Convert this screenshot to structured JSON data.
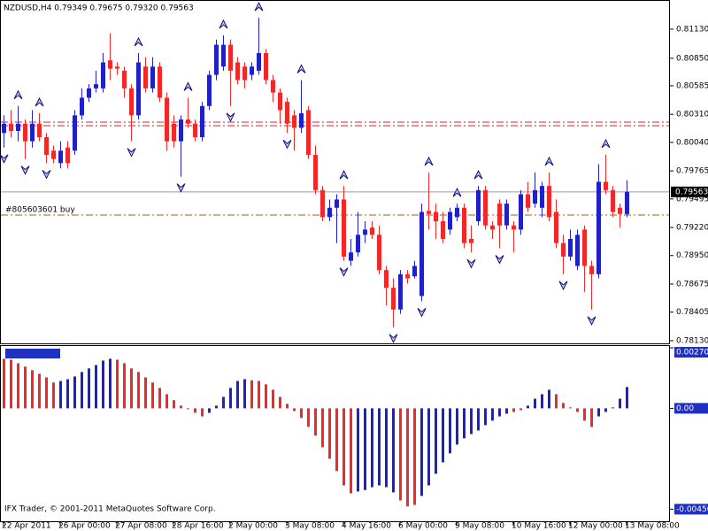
{
  "chart_data": [
    {
      "type": "candlestick",
      "title": "NZDUSD,H4  0.79349 0.79675 0.79320 0.79563",
      "up_color": "#2020c8",
      "down_color": "#f02828",
      "fractal_color": "#10107a",
      "categories": [
        "22 Apr 2011",
        null,
        null,
        null,
        null,
        null,
        null,
        null,
        "26 Apr 00:00",
        null,
        null,
        null,
        null,
        null,
        null,
        null,
        "27 Apr 08:00",
        null,
        null,
        null,
        null,
        null,
        null,
        null,
        "28 Apr 16:00",
        null,
        null,
        null,
        null,
        null,
        null,
        null,
        "2 May 00:00",
        null,
        null,
        null,
        null,
        null,
        null,
        null,
        "3 May 08:00",
        null,
        null,
        null,
        null,
        null,
        null,
        null,
        "4 May 16:00",
        null,
        null,
        null,
        null,
        null,
        null,
        null,
        "6 May 00:00",
        null,
        null,
        null,
        null,
        null,
        null,
        null,
        "9 May 08:00",
        null,
        null,
        null,
        null,
        null,
        null,
        null,
        "10 May 16:00",
        null,
        null,
        null,
        null,
        null,
        null,
        null,
        "12 May 00:00",
        null,
        null,
        null,
        null,
        null,
        null,
        null,
        "13 May 08:00"
      ],
      "candles": [
        [
          0.8013,
          0.803,
          0.7999,
          0.8022
        ],
        [
          0.8022,
          0.8035,
          0.8009,
          0.8015
        ],
        [
          0.8015,
          0.8039,
          0.8005,
          0.8022
        ],
        [
          0.8022,
          0.8026,
          0.7988,
          0.8005
        ],
        [
          0.8005,
          0.8035,
          0.7999,
          0.8022
        ],
        [
          0.8022,
          0.8032,
          0.8005,
          0.8009
        ],
        [
          0.8009,
          0.8013,
          0.7984,
          0.7992
        ],
        [
          0.7996,
          0.8001,
          0.7984,
          0.7988
        ],
        [
          0.7984,
          0.8005,
          0.7979,
          0.7996
        ],
        [
          0.7999,
          0.8005,
          0.7979,
          0.7984
        ],
        [
          0.7996,
          0.8035,
          0.7992,
          0.803
        ],
        [
          0.803,
          0.8056,
          0.8026,
          0.8047
        ],
        [
          0.8047,
          0.806,
          0.8043,
          0.8056
        ],
        [
          0.8056,
          0.8073,
          0.8052,
          0.806
        ],
        [
          0.8056,
          0.809,
          0.8052,
          0.8081
        ],
        [
          0.8083,
          0.8109,
          0.8064,
          0.8075
        ],
        [
          0.8077,
          0.8081,
          0.8069,
          0.8075
        ],
        [
          0.8073,
          0.8077,
          0.8047,
          0.8056
        ],
        [
          0.8056,
          0.806,
          0.8005,
          0.803
        ],
        [
          0.803,
          0.809,
          0.8026,
          0.8081
        ],
        [
          0.8077,
          0.8086,
          0.8052,
          0.8056
        ],
        [
          0.8056,
          0.8086,
          0.8052,
          0.8077
        ],
        [
          0.8077,
          0.8081,
          0.8043,
          0.8047
        ],
        [
          0.8047,
          0.8052,
          0.7996,
          0.8005
        ],
        [
          0.8022,
          0.803,
          0.7999,
          0.8005
        ],
        [
          0.8005,
          0.803,
          0.7971,
          0.8026
        ],
        [
          0.8026,
          0.8047,
          0.8018,
          0.8022
        ],
        [
          0.8022,
          0.8026,
          0.8005,
          0.8009
        ],
        [
          0.8009,
          0.8043,
          0.8005,
          0.8039
        ],
        [
          0.8039,
          0.8073,
          0.8035,
          0.8069
        ],
        [
          0.8069,
          0.8103,
          0.8064,
          0.8098
        ],
        [
          0.8077,
          0.8107,
          0.8073,
          0.8098
        ],
        [
          0.8098,
          0.8103,
          0.8039,
          0.8073
        ],
        [
          0.8081,
          0.8086,
          0.806,
          0.8064
        ],
        [
          0.8077,
          0.8081,
          0.8056,
          0.8064
        ],
        [
          0.8069,
          0.8081,
          0.8064,
          0.8077
        ],
        [
          0.8073,
          0.8124,
          0.8069,
          0.809
        ],
        [
          0.809,
          0.8094,
          0.806,
          0.8064
        ],
        [
          0.8064,
          0.8069,
          0.8043,
          0.8052
        ],
        [
          0.8052,
          0.8056,
          0.8022,
          0.8035
        ],
        [
          0.8043,
          0.8047,
          0.8013,
          0.8022
        ],
        [
          0.803,
          0.8035,
          0.7996,
          0.8018
        ],
        [
          0.8018,
          0.8064,
          0.8013,
          0.8032
        ],
        [
          0.8035,
          0.8039,
          0.7988,
          0.7992
        ],
        [
          0.7992,
          0.8001,
          0.7954,
          0.7958
        ],
        [
          0.7958,
          0.7962,
          0.7928,
          0.7932
        ],
        [
          0.7932,
          0.7949,
          0.7928,
          0.7941
        ],
        [
          0.7941,
          0.7954,
          0.7907,
          0.7949
        ],
        [
          0.7949,
          0.7962,
          0.789,
          0.7894
        ],
        [
          0.789,
          0.7911,
          0.7885,
          0.7898
        ],
        [
          0.7898,
          0.7937,
          0.7894,
          0.7915
        ],
        [
          0.7915,
          0.7928,
          0.7907,
          0.792
        ],
        [
          0.7922,
          0.7928,
          0.7911,
          0.7915
        ],
        [
          0.7915,
          0.7924,
          0.7877,
          0.7881
        ],
        [
          0.7881,
          0.7885,
          0.7847,
          0.7864
        ],
        [
          0.7864,
          0.7873,
          0.7826,
          0.7843
        ],
        [
          0.7843,
          0.7881,
          0.7839,
          0.7877
        ],
        [
          0.7877,
          0.7881,
          0.7868,
          0.7873
        ],
        [
          0.7875,
          0.789,
          0.7873,
          0.7885
        ],
        [
          0.7856,
          0.7945,
          0.7851,
          0.7937
        ],
        [
          0.7938,
          0.7975,
          0.792,
          0.7935
        ],
        [
          0.7937,
          0.7945,
          0.7911,
          0.7928
        ],
        [
          0.7928,
          0.7937,
          0.7907,
          0.7911
        ],
        [
          0.792,
          0.7941,
          0.7915,
          0.7937
        ],
        [
          0.7932,
          0.7945,
          0.7928,
          0.7941
        ],
        [
          0.7941,
          0.7945,
          0.7902,
          0.7907
        ],
        [
          0.7911,
          0.7924,
          0.7898,
          0.7907
        ],
        [
          0.7928,
          0.7962,
          0.7924,
          0.7958
        ],
        [
          0.7958,
          0.7962,
          0.792,
          0.7924
        ],
        [
          0.7924,
          0.7928,
          0.7911,
          0.792
        ],
        [
          0.7945,
          0.7949,
          0.7902,
          0.7924
        ],
        [
          0.7924,
          0.7949,
          0.792,
          0.7945
        ],
        [
          0.7924,
          0.7928,
          0.7898,
          0.792
        ],
        [
          0.792,
          0.7958,
          0.7915,
          0.7954
        ],
        [
          0.7954,
          0.7966,
          0.7937,
          0.7941
        ],
        [
          0.7945,
          0.7975,
          0.7941,
          0.7958
        ],
        [
          0.7941,
          0.7966,
          0.7932,
          0.7962
        ],
        [
          0.7962,
          0.7975,
          0.7928,
          0.7932
        ],
        [
          0.7937,
          0.7949,
          0.7902,
          0.7907
        ],
        [
          0.7907,
          0.7915,
          0.7877,
          0.7894
        ],
        [
          0.7894,
          0.792,
          0.789,
          0.7911
        ],
        [
          0.7885,
          0.792,
          0.7881,
          0.7915
        ],
        [
          0.792,
          0.7924,
          0.786,
          0.7885
        ],
        [
          0.7885,
          0.789,
          0.7843,
          0.7877
        ],
        [
          0.7877,
          0.7983,
          0.7873,
          0.7966
        ],
        [
          0.7966,
          0.7992,
          0.7954,
          0.7958
        ],
        [
          0.7958,
          0.7962,
          0.7932,
          0.7937
        ],
        [
          0.7941,
          0.7945,
          0.7922,
          0.7935
        ],
        [
          0.79349,
          0.79675,
          0.7932,
          0.79563
        ]
      ],
      "fractal_up": [
        null,
        null,
        0.8039,
        null,
        null,
        0.8032,
        null,
        null,
        null,
        null,
        null,
        null,
        null,
        null,
        null,
        null,
        null,
        null,
        null,
        0.809,
        null,
        null,
        null,
        null,
        null,
        null,
        0.8047,
        null,
        null,
        null,
        null,
        0.8107,
        null,
        null,
        null,
        null,
        0.8124,
        null,
        null,
        null,
        null,
        null,
        0.8064,
        null,
        null,
        null,
        null,
        null,
        0.7962,
        null,
        null,
        null,
        null,
        null,
        null,
        null,
        null,
        null,
        null,
        null,
        0.7975,
        null,
        null,
        null,
        0.7945,
        null,
        null,
        0.7962,
        null,
        null,
        null,
        null,
        null,
        null,
        null,
        null,
        null,
        0.7975,
        null,
        null,
        null,
        null,
        null,
        null,
        null,
        0.7992,
        null,
        null,
        null
      ],
      "fractal_down": [
        0.7999,
        null,
        null,
        0.7988,
        null,
        null,
        0.7984,
        null,
        null,
        null,
        null,
        null,
        null,
        null,
        null,
        null,
        null,
        null,
        0.8005,
        null,
        null,
        null,
        null,
        null,
        null,
        0.7971,
        null,
        null,
        null,
        null,
        null,
        null,
        0.8039,
        null,
        null,
        null,
        null,
        null,
        null,
        null,
        0.8013,
        null,
        null,
        null,
        null,
        null,
        null,
        null,
        0.789,
        null,
        null,
        null,
        null,
        null,
        null,
        0.7826,
        null,
        null,
        null,
        0.7851,
        null,
        null,
        null,
        null,
        null,
        null,
        0.7898,
        null,
        null,
        null,
        0.7902,
        null,
        null,
        null,
        null,
        null,
        null,
        null,
        null,
        0.7877,
        null,
        null,
        null,
        0.7843,
        null,
        null,
        null,
        null,
        null
      ],
      "levels": [
        0.80235,
        0.80201
      ],
      "level_color": "#e02020",
      "last_price": {
        "value": 0.79563,
        "label": "0.79563"
      },
      "order": {
        "label": "#805603601 buy",
        "price": 0.7934,
        "color": "#a06010"
      },
      "ylim": [
        0.78104,
        0.81394
      ],
      "yticks": [
        {
          "value": 0.8113,
          "label": "0.81130"
        },
        {
          "value": 0.8085,
          "label": "0.80850"
        },
        {
          "value": 0.80585,
          "label": "0.80585"
        },
        {
          "value": 0.8031,
          "label": "0.80310"
        },
        {
          "value": 0.8004,
          "label": "0.80040"
        },
        {
          "value": 0.79765,
          "label": "0.79765"
        },
        {
          "value": 0.79495,
          "label": "0.79495"
        },
        {
          "value": 0.7922,
          "label": "0.79220"
        },
        {
          "value": 0.7895,
          "label": "0.78950"
        },
        {
          "value": 0.78675,
          "label": "0.78675"
        },
        {
          "value": 0.78405,
          "label": "0.78405"
        },
        {
          "value": 0.7813,
          "label": "0.78130"
        }
      ]
    },
    {
      "type": "bar",
      "ylim": [
        -0.005,
        0.0027
      ],
      "yticks": [
        {
          "value": 0.0027,
          "label": "0.002700"
        },
        {
          "value": 0,
          "label": "0.00"
        },
        {
          "value": -0.0045,
          "label": "-0.004500"
        }
      ],
      "series": [
        {
          "color": "#f02828",
          "values": [
            0.00221,
            0.00217,
            0.00201,
            0.00186,
            0.0017,
            0.00154,
            0.00138,
            0.00115,
            null,
            null,
            null,
            null,
            null,
            null,
            null,
            null,
            0.00217,
            0.00201,
            0.00178,
            0.00162,
            0.00138,
            0.00115,
            0.00091,
            0.00063,
            0.00036,
            0.00012,
            -4e-05,
            -0.0002,
            -0.00036,
            null,
            null,
            null,
            null,
            null,
            null,
            0.00125,
            0.00122,
            0.00107,
            0.00083,
            0.00051,
            0.0002,
            -0.00012,
            -0.00043,
            -0.00083,
            -0.00122,
            -0.00174,
            -0.00225,
            -0.0028,
            -0.00344,
            -0.00379,
            null,
            null,
            null,
            null,
            null,
            null,
            -0.00411,
            -0.00438,
            -0.00431,
            null,
            null,
            null,
            null,
            null,
            null,
            null,
            null,
            null,
            null,
            null,
            null,
            null,
            -0.00016,
            -8e-05,
            null,
            null,
            null,
            null,
            0.00063,
            0.00024,
            4e-05,
            -0.00016,
            -0.00055,
            -0.00083,
            null,
            null,
            null,
            null,
            null
          ]
        },
        {
          "color": "#2020c8",
          "values": [
            null,
            null,
            null,
            null,
            null,
            null,
            null,
            null,
            0.00122,
            0.0013,
            0.00142,
            0.00162,
            0.00178,
            0.00193,
            0.00213,
            0.00221,
            null,
            null,
            null,
            null,
            null,
            null,
            null,
            null,
            null,
            null,
            null,
            null,
            null,
            -0.0002,
            0.00012,
            0.00051,
            0.00091,
            0.00122,
            0.0013,
            null,
            null,
            null,
            null,
            null,
            null,
            null,
            null,
            null,
            null,
            null,
            null,
            null,
            null,
            null,
            -0.00371,
            -0.00365,
            -0.00352,
            -0.00344,
            -0.00352,
            -0.00375,
            null,
            null,
            null,
            -0.00391,
            -0.00344,
            -0.00292,
            -0.00241,
            -0.00201,
            -0.00162,
            -0.00134,
            -0.00115,
            -0.00099,
            -0.00075,
            -0.00055,
            -0.00036,
            -0.00024,
            null,
            null,
            0.00012,
            0.00043,
            0.00063,
            0.00083,
            null,
            null,
            null,
            null,
            null,
            null,
            -0.00036,
            -0.00016,
            4e-05,
            0.00043,
            0.00095
          ]
        }
      ]
    }
  ],
  "footer": "IFX Trader, © 2001-2011 MetaQuotes Software Corp."
}
